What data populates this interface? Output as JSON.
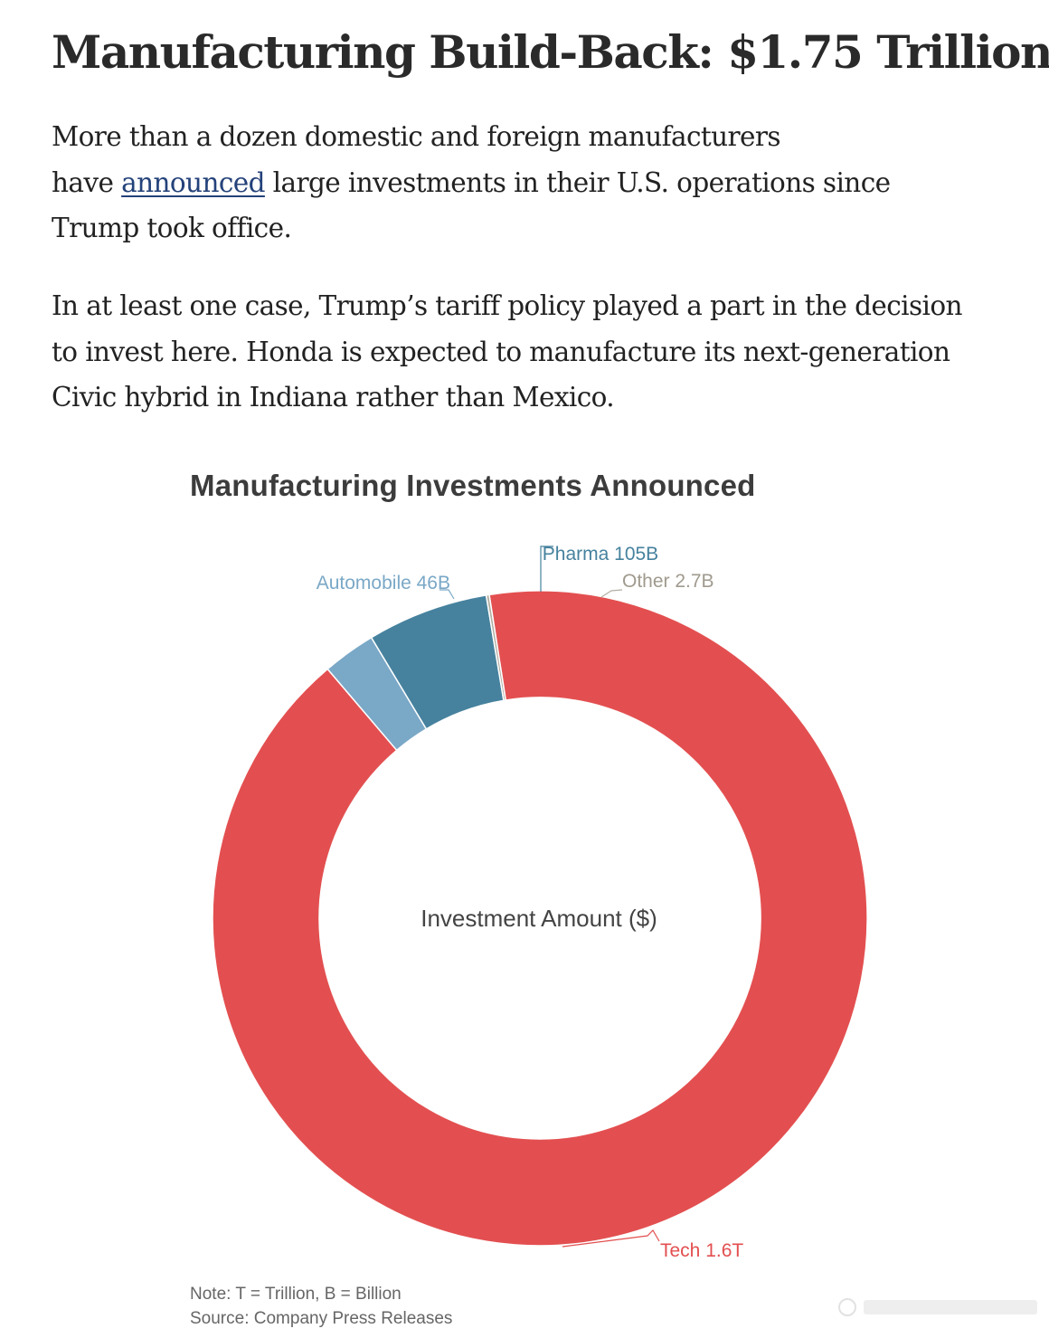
{
  "article": {
    "headline": "Manufacturing Build-Back: $1.75 Trillion",
    "paragraph1": {
      "line1": "More than a dozen domestic and foreign manufacturers",
      "line2_before_link": "have ",
      "line2_link": "announced",
      "line2_after_link": " large investments in their U.S. operations since",
      "line3": "Trump took office."
    },
    "paragraph2": {
      "line1": "In at least one case, Trump’s tariff policy played a part in the decision",
      "line2": "to invest here. Honda is expected to manufacture its next-generation",
      "line3": "Civic hybrid in Indiana rather than Mexico."
    }
  },
  "chart_data": {
    "type": "pie",
    "variant": "donut",
    "title": "Manufacturing Investments Announced",
    "center_label": "Investment Amount ($)",
    "slices": [
      {
        "name": "Pharma",
        "label": "Pharma 105B",
        "value": 105,
        "unit": "B",
        "color": "#46829e"
      },
      {
        "name": "Other",
        "label": "Other 2.7B",
        "value": 2.7,
        "unit": "B",
        "color": "#b3aea3"
      },
      {
        "name": "Tech",
        "label": "Tech 1.6T",
        "value": 1600,
        "unit": "B",
        "color": "#e34f50"
      },
      {
        "name": "Automobile",
        "label": "Automobile 46B",
        "value": 46,
        "unit": "B",
        "color": "#7aa8c7"
      }
    ],
    "note": "Note: T = Trillion, B = Billion",
    "source": "Source: Company Press Releases"
  }
}
